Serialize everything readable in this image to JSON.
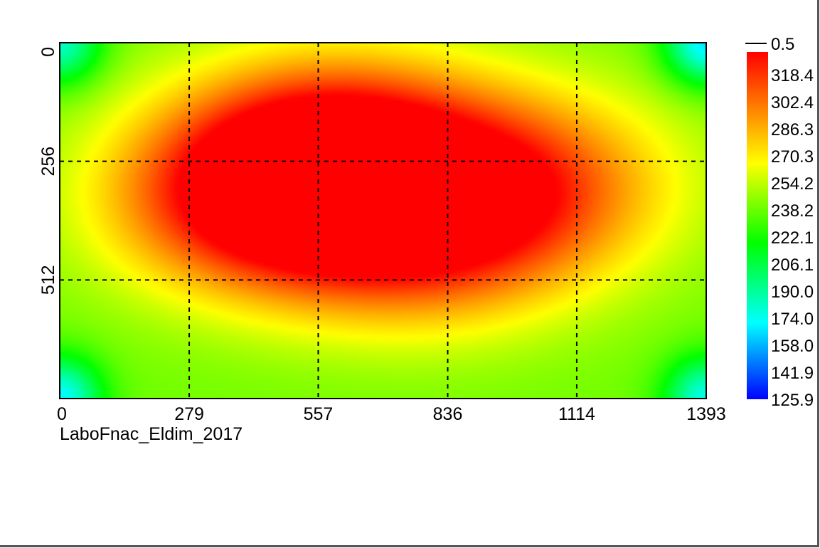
{
  "chart_data": {
    "type": "heatmap",
    "caption": "LaboFnac_Eldim_2017",
    "x_ticks": [
      0,
      279,
      557,
      836,
      1114,
      1393
    ],
    "x_tick_labels": [
      "0",
      "279",
      "557",
      "836",
      "1114",
      "1393"
    ],
    "y_ticks": [
      0,
      256,
      512
    ],
    "y_tick_labels": [
      "0",
      "256",
      "512"
    ],
    "xlim": [
      0,
      1393
    ],
    "ylim": [
      0,
      768
    ],
    "y_axis_direction": "top-to-bottom",
    "grid": "dashed",
    "colorbar": {
      "position": "right",
      "marker_label": "0.5",
      "labels": [
        "318.4",
        "302.4",
        "286.3",
        "270.3",
        "254.2",
        "238.2",
        "222.1",
        "206.1",
        "190.0",
        "174.0",
        "158.0",
        "141.9",
        "125.9"
      ],
      "min": 125.9,
      "max": 330,
      "colors": [
        "#0000ff",
        "#00ffff",
        "#00ff00",
        "#ffff00",
        "#ff0000"
      ]
    },
    "field": {
      "base": 238,
      "hotspots": [
        {
          "x": 440,
          "y": 340,
          "value": 330
        },
        {
          "x": 600,
          "y": 220,
          "value": 320
        },
        {
          "x": 1000,
          "y": 300,
          "value": 300
        },
        {
          "x": 780,
          "y": 420,
          "value": 302
        }
      ],
      "cool_corners": [
        {
          "x": 0,
          "y": 0,
          "value": 180
        },
        {
          "x": 1393,
          "y": 0,
          "value": 165
        },
        {
          "x": 0,
          "y": 768,
          "value": 170
        },
        {
          "x": 1393,
          "y": 768,
          "value": 175
        }
      ]
    }
  }
}
